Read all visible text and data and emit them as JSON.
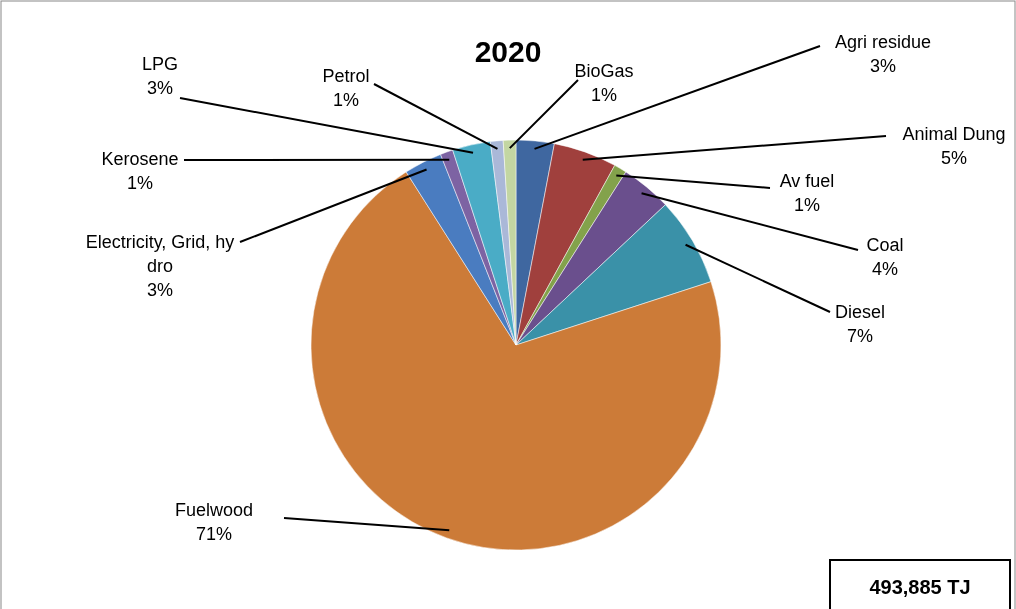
{
  "chart_data": {
    "type": "pie",
    "title": "2020",
    "categories": [
      "Agri residue",
      "Animal Dung",
      "Av fuel",
      "Coal",
      "Diesel",
      "Fuelwood",
      "Electricity, Grid, hy dro",
      "Kerosene",
      "LPG",
      "Petrol",
      "BioGas"
    ],
    "values": [
      3,
      5,
      1,
      4,
      7,
      71,
      3,
      1,
      3,
      1,
      1
    ],
    "colors": [
      "#3f67a0",
      "#a0403d",
      "#83a24b",
      "#6a4f8d",
      "#3a91a8",
      "#cc7b38",
      "#4a7cc0",
      "#7d63a3",
      "#4aacc6",
      "#aab8d8",
      "#c3d6a2"
    ],
    "value_labels": [
      "3%",
      "5%",
      "1%",
      "4%",
      "7%",
      "71%",
      "3%",
      "1%",
      "3%",
      "1%",
      "1%"
    ],
    "annotations": [
      "493,885 TJ"
    ]
  }
}
